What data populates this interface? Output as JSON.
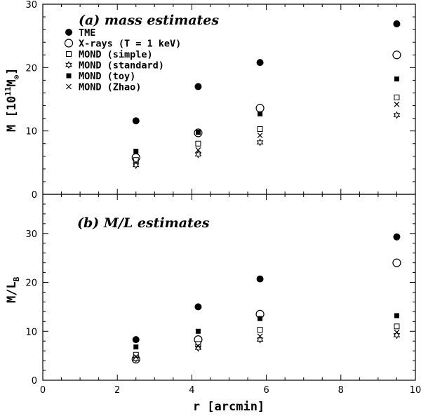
{
  "chart_data": [
    {
      "type": "scatter",
      "panel": "a",
      "title": "(a) mass estimates",
      "ylabel": "M [10¹¹M⊙]",
      "xlabel": "",
      "xlim": [
        0,
        10
      ],
      "ylim": [
        0,
        30
      ],
      "yticks": [
        0,
        10,
        20,
        30
      ],
      "xticks": [
        0,
        2,
        4,
        6,
        8,
        10
      ],
      "x": [
        2.5,
        4.17,
        5.83,
        9.5
      ],
      "series": [
        {
          "name": "TME",
          "marker": "filled-circle",
          "values": [
            11.6,
            17.0,
            20.8,
            26.9
          ]
        },
        {
          "name": "X-rays (T = 1 keV)",
          "marker": "open-circle",
          "values": [
            5.8,
            9.7,
            13.6,
            22.0
          ]
        },
        {
          "name": "MOND (simple)",
          "marker": "open-square",
          "values": [
            5.4,
            8.0,
            10.3,
            15.3
          ]
        },
        {
          "name": "MOND (standard)",
          "marker": "star",
          "values": [
            4.6,
            6.3,
            8.2,
            12.5
          ]
        },
        {
          "name": "MOND (toy)",
          "marker": "filled-square",
          "values": [
            6.8,
            9.8,
            12.7,
            18.2
          ]
        },
        {
          "name": "MOND (Zhao)",
          "marker": "cross",
          "values": [
            5.0,
            7.0,
            9.3,
            14.2
          ]
        }
      ]
    },
    {
      "type": "scatter",
      "panel": "b",
      "title": "(b) M/L estimates",
      "ylabel": "M/L_B",
      "xlabel": "r [arcmin]",
      "xlim": [
        0,
        10
      ],
      "ylim": [
        0,
        38
      ],
      "yticks": [
        0,
        10,
        20,
        30
      ],
      "xticks": [
        0,
        2,
        4,
        6,
        8,
        10
      ],
      "x": [
        2.5,
        4.17,
        5.83,
        9.5
      ],
      "series": [
        {
          "name": "TME",
          "marker": "filled-circle",
          "values": [
            8.3,
            15.0,
            20.7,
            29.3
          ]
        },
        {
          "name": "X-rays (T = 1 keV)",
          "marker": "open-circle",
          "values": [
            4.3,
            8.3,
            13.5,
            24.0
          ]
        },
        {
          "name": "MOND (simple)",
          "marker": "open-square",
          "values": [
            5.2,
            7.4,
            10.3,
            11.0
          ]
        },
        {
          "name": "MOND (standard)",
          "marker": "star",
          "values": [
            4.4,
            6.6,
            8.3,
            9.2
          ]
        },
        {
          "name": "MOND (toy)",
          "marker": "filled-square",
          "values": [
            6.8,
            10.0,
            12.6,
            13.2
          ]
        },
        {
          "name": "MOND (Zhao)",
          "marker": "cross",
          "values": [
            4.8,
            7.0,
            9.0,
            9.8
          ]
        }
      ]
    }
  ],
  "legend": [
    {
      "label": "TME",
      "marker": "filled-circle"
    },
    {
      "label": "X-rays (T = 1 keV)",
      "marker": "open-circle"
    },
    {
      "label": "MOND (simple)",
      "marker": "open-square"
    },
    {
      "label": "MOND (standard)",
      "marker": "star"
    },
    {
      "label": "MOND (toy)",
      "marker": "filled-square"
    },
    {
      "label": "MOND (Zhao)",
      "marker": "cross"
    }
  ],
  "labels": {
    "panel_a_title": "(a) mass estimates",
    "panel_b_title": "(b) M/L estimates",
    "ylabel_a_main": "M [10",
    "ylabel_a_exp": "11",
    "ylabel_a_unit": "M",
    "ylabel_a_sub": "⊙",
    "ylabel_a_close": "]",
    "ylabel_b_main": "M/L",
    "ylabel_b_sub": "B",
    "xlabel": "r [arcmin]"
  }
}
